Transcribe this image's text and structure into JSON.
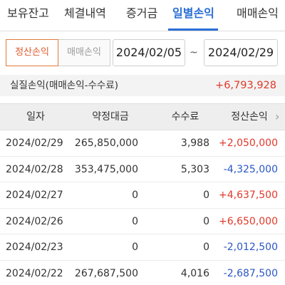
{
  "tabs": [
    {
      "label": "보유잔고"
    },
    {
      "label": "체결내역"
    },
    {
      "label": "증거금"
    },
    {
      "label": "일별손익"
    },
    {
      "label": "매매손익"
    }
  ],
  "active_tab": "일별손익",
  "filter": {
    "segments": [
      "정산손익",
      "매매손익"
    ],
    "active_segment": "정산손익",
    "start_date": "2024/02/05",
    "separator": "~",
    "end_date": "2024/02/29"
  },
  "summary": {
    "label": "실질손익(매매손익-수수료)",
    "value": "+6,793,928"
  },
  "table": {
    "headers": [
      "일자",
      "약정대금",
      "수수료",
      "정산손익"
    ],
    "chevron": "›",
    "rows": [
      {
        "date": "2024/02/29",
        "amount": "265,850,000",
        "fee": "3,988",
        "pl": "+2,050,000"
      },
      {
        "date": "2024/02/28",
        "amount": "353,475,000",
        "fee": "5,303",
        "pl": "-4,325,000"
      },
      {
        "date": "2024/02/27",
        "amount": "0",
        "fee": "0",
        "pl": "+4,637,500"
      },
      {
        "date": "2024/02/26",
        "amount": "0",
        "fee": "0",
        "pl": "+6,650,000"
      },
      {
        "date": "2024/02/23",
        "amount": "0",
        "fee": "0",
        "pl": "-2,012,500"
      },
      {
        "date": "2024/02/22",
        "amount": "267,687,500",
        "fee": "4,016",
        "pl": "-2,687,500"
      }
    ]
  },
  "colors": {
    "accent": "#2b6fd6",
    "positive": "#e0392a",
    "negative": "#2a56c6",
    "segment_active": "#e0592a"
  }
}
